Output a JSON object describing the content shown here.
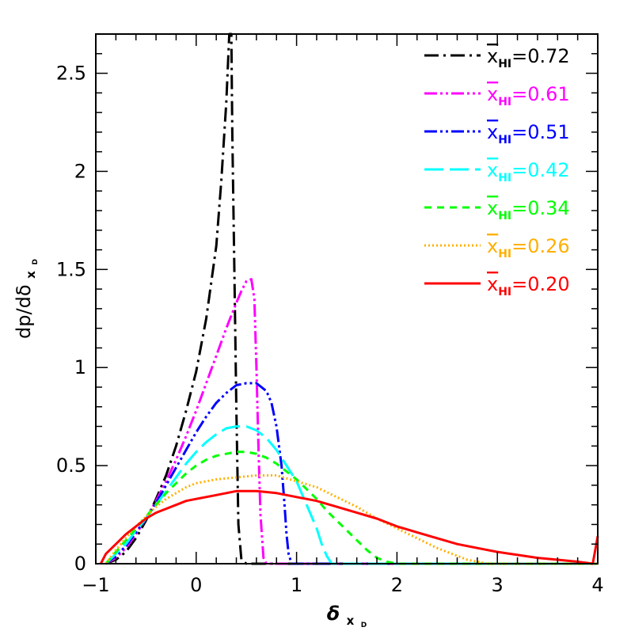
{
  "chart_data": {
    "type": "line",
    "xlabel": "δ",
    "xlabel_sub": "x",
    "xlabel_subsub": "D",
    "ylabel": "dp/dδ",
    "ylabel_sub": "x",
    "ylabel_subsub": "D",
    "xlim": [
      -1,
      4
    ],
    "ylim": [
      0,
      2.7
    ],
    "x_ticks": [
      -1,
      0,
      1,
      2,
      3,
      4
    ],
    "x_tick_labels": [
      "−1",
      "0",
      "1",
      "2",
      "3",
      "4"
    ],
    "y_ticks": [
      0,
      0.5,
      1,
      1.5,
      2,
      2.5
    ],
    "y_tick_labels": [
      "0",
      "0.5",
      "1",
      "1.5",
      "2",
      "2.5"
    ],
    "grid": false,
    "legend_position": "top-right",
    "legend_symbol": "x",
    "legend_subscript": "HI",
    "series": [
      {
        "name": "0.72",
        "color": "#000000",
        "dash": "long-dash-dot",
        "x": [
          -0.9,
          -0.8,
          -0.7,
          -0.6,
          -0.5,
          -0.4,
          -0.3,
          -0.2,
          -0.1,
          0.0,
          0.1,
          0.2,
          0.25,
          0.3,
          0.33,
          0.35,
          0.36,
          0.38,
          0.4,
          0.42,
          0.45,
          0.5,
          1.0,
          2.0,
          3.0,
          4.0
        ],
        "y": [
          0.0,
          0.02,
          0.06,
          0.13,
          0.22,
          0.33,
          0.45,
          0.6,
          0.78,
          0.98,
          1.25,
          1.62,
          1.95,
          2.35,
          2.7,
          2.7,
          2.2,
          1.5,
          0.8,
          0.2,
          0.02,
          0.0,
          0.0,
          0.0,
          0.0,
          0.0
        ]
      },
      {
        "name": "0.61",
        "color": "#ff00ff",
        "dash": "dash-dot-dot",
        "x": [
          -0.9,
          -0.8,
          -0.7,
          -0.6,
          -0.5,
          -0.4,
          -0.3,
          -0.2,
          -0.1,
          0.0,
          0.1,
          0.2,
          0.3,
          0.4,
          0.45,
          0.5,
          0.55,
          0.58,
          0.6,
          0.62,
          0.64,
          0.67,
          0.7,
          1.0,
          2.0,
          3.0,
          4.0
        ],
        "y": [
          0.0,
          0.03,
          0.08,
          0.15,
          0.23,
          0.32,
          0.42,
          0.53,
          0.65,
          0.78,
          0.92,
          1.06,
          1.2,
          1.33,
          1.39,
          1.44,
          1.45,
          1.35,
          1.0,
          0.6,
          0.25,
          0.03,
          0.0,
          0.0,
          0.0,
          0.0,
          0.0
        ]
      },
      {
        "name": "0.51",
        "color": "#0000ff",
        "dash": "dash-dot-dot",
        "x": [
          -0.9,
          -0.8,
          -0.7,
          -0.6,
          -0.5,
          -0.4,
          -0.3,
          -0.2,
          -0.1,
          0.0,
          0.1,
          0.2,
          0.3,
          0.4,
          0.5,
          0.6,
          0.7,
          0.75,
          0.8,
          0.85,
          0.88,
          0.9,
          0.92,
          0.95,
          1.0,
          2.0,
          3.0,
          4.0
        ],
        "y": [
          0.0,
          0.04,
          0.09,
          0.16,
          0.23,
          0.31,
          0.4,
          0.49,
          0.58,
          0.67,
          0.75,
          0.82,
          0.87,
          0.91,
          0.92,
          0.92,
          0.88,
          0.82,
          0.7,
          0.5,
          0.3,
          0.15,
          0.05,
          0.0,
          0.0,
          0.0,
          0.0,
          0.0
        ]
      },
      {
        "name": "0.42",
        "color": "#00ffff",
        "dash": "long-dash",
        "x": [
          -0.9,
          -0.8,
          -0.7,
          -0.6,
          -0.5,
          -0.4,
          -0.3,
          -0.2,
          -0.1,
          0.0,
          0.1,
          0.2,
          0.3,
          0.4,
          0.5,
          0.6,
          0.7,
          0.8,
          0.9,
          1.0,
          1.1,
          1.2,
          1.25,
          1.3,
          1.35,
          1.4,
          2.0,
          3.0,
          4.0
        ],
        "y": [
          0.0,
          0.05,
          0.1,
          0.17,
          0.23,
          0.3,
          0.37,
          0.44,
          0.51,
          0.57,
          0.62,
          0.66,
          0.69,
          0.7,
          0.7,
          0.68,
          0.64,
          0.58,
          0.5,
          0.42,
          0.3,
          0.18,
          0.1,
          0.04,
          0.0,
          0.0,
          0.0,
          0.0,
          0.0
        ]
      },
      {
        "name": "0.34",
        "color": "#00ff00",
        "dash": "short-dash",
        "x": [
          -0.9,
          -0.8,
          -0.7,
          -0.6,
          -0.5,
          -0.4,
          -0.3,
          -0.2,
          -0.1,
          0.0,
          0.1,
          0.2,
          0.3,
          0.4,
          0.5,
          0.6,
          0.7,
          0.8,
          0.9,
          1.0,
          1.1,
          1.2,
          1.3,
          1.4,
          1.5,
          1.6,
          1.7,
          1.8,
          1.9,
          2.0,
          3.0,
          4.0
        ],
        "y": [
          0.0,
          0.06,
          0.12,
          0.18,
          0.24,
          0.3,
          0.36,
          0.41,
          0.46,
          0.5,
          0.53,
          0.55,
          0.56,
          0.57,
          0.57,
          0.56,
          0.54,
          0.51,
          0.47,
          0.43,
          0.38,
          0.33,
          0.27,
          0.22,
          0.17,
          0.12,
          0.07,
          0.03,
          0.01,
          0.0,
          0.0,
          0.0
        ]
      },
      {
        "name": "0.26",
        "color": "#ffb000",
        "dash": "dotted",
        "x": [
          -0.9,
          -0.8,
          -0.7,
          -0.6,
          -0.5,
          -0.4,
          -0.3,
          -0.2,
          -0.1,
          0.0,
          0.2,
          0.4,
          0.6,
          0.8,
          1.0,
          1.2,
          1.4,
          1.6,
          1.8,
          2.0,
          2.2,
          2.4,
          2.6,
          2.7,
          2.8,
          2.9,
          3.0,
          4.0
        ],
        "y": [
          0.0,
          0.07,
          0.13,
          0.19,
          0.24,
          0.29,
          0.33,
          0.36,
          0.39,
          0.41,
          0.43,
          0.44,
          0.45,
          0.45,
          0.42,
          0.39,
          0.34,
          0.29,
          0.23,
          0.18,
          0.13,
          0.08,
          0.04,
          0.02,
          0.01,
          0.0,
          0.0,
          0.0
        ]
      },
      {
        "name": "0.20",
        "color": "#ff0000",
        "dash": "solid",
        "x": [
          -0.95,
          -0.9,
          -0.8,
          -0.7,
          -0.6,
          -0.5,
          -0.4,
          -0.3,
          -0.2,
          -0.1,
          0.0,
          0.2,
          0.4,
          0.6,
          0.8,
          1.0,
          1.2,
          1.4,
          1.6,
          1.8,
          2.0,
          2.2,
          2.4,
          2.6,
          2.8,
          3.0,
          3.2,
          3.4,
          3.6,
          3.8,
          3.95,
          4.0
        ],
        "y": [
          0.0,
          0.05,
          0.1,
          0.15,
          0.19,
          0.23,
          0.26,
          0.28,
          0.3,
          0.32,
          0.33,
          0.35,
          0.37,
          0.37,
          0.36,
          0.34,
          0.32,
          0.29,
          0.26,
          0.23,
          0.19,
          0.16,
          0.13,
          0.1,
          0.08,
          0.06,
          0.045,
          0.03,
          0.02,
          0.01,
          0.0,
          0.14
        ]
      }
    ]
  }
}
